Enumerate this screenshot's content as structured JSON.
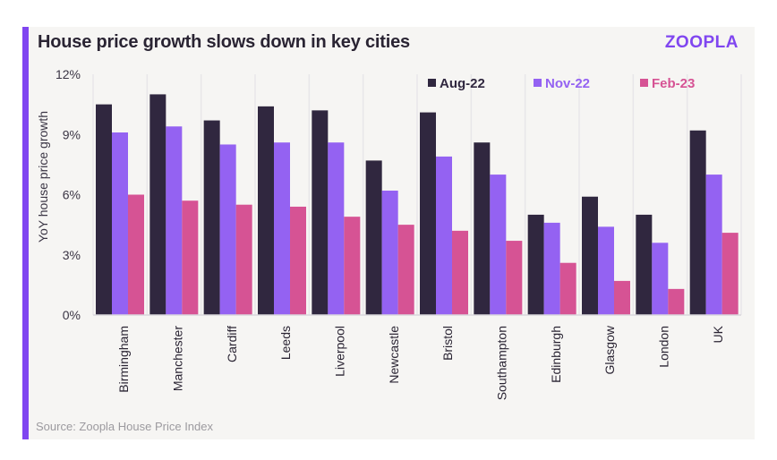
{
  "header": {
    "title": "House price growth slows down in key cities",
    "brand": "ZOOPLA"
  },
  "footer": {
    "source": "Source: Zoopla House Price Index"
  },
  "colors": {
    "accent": "#8046f0",
    "panel_bg": "#f6f5f3"
  },
  "chart_data": {
    "type": "bar",
    "title": "House price growth slows down in key cities",
    "xlabel": "",
    "ylabel": "YoY house price growth",
    "ylim": [
      0,
      12
    ],
    "yticks": [
      0,
      3,
      6,
      9,
      12
    ],
    "ytick_labels": [
      "0%",
      "3%",
      "6%",
      "9%",
      "12%"
    ],
    "grid": "vertical category separators",
    "legend_position": "top-right",
    "categories": [
      "Birmingham",
      "Manchester",
      "Cardiff",
      "Leeds",
      "Liverpool",
      "Newcastle",
      "Bristol",
      "Southampton",
      "Edinburgh",
      "Glasgow",
      "London",
      "UK"
    ],
    "series": [
      {
        "name": "Aug-22",
        "color": "#30273f",
        "values": [
          10.5,
          11.0,
          9.7,
          10.4,
          10.2,
          7.7,
          10.1,
          8.6,
          5.0,
          5.9,
          5.0,
          9.2
        ]
      },
      {
        "name": "Nov-22",
        "color": "#9462f2",
        "values": [
          9.1,
          9.4,
          8.5,
          8.6,
          8.6,
          6.2,
          7.9,
          7.0,
          4.6,
          4.4,
          3.6,
          7.0
        ]
      },
      {
        "name": "Feb-23",
        "color": "#d65394",
        "values": [
          6.0,
          5.7,
          5.5,
          5.4,
          4.9,
          4.5,
          4.2,
          3.7,
          2.6,
          1.7,
          1.3,
          4.1
        ]
      }
    ]
  }
}
